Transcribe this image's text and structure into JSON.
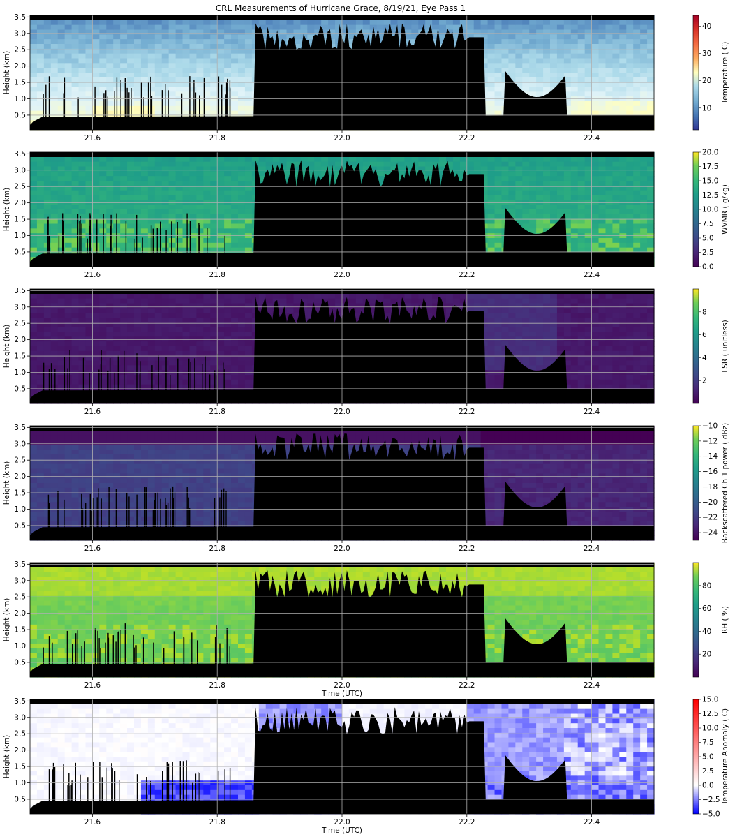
{
  "title": "CRL Measurements of Hurricane Grace, 8/19/21, Eye Pass 1",
  "colors": {
    "obstruction": "#000000",
    "grid": "#b0b0b0"
  },
  "chart_data": [
    {
      "type": "heatmap",
      "name": "temperature",
      "xlabel": "",
      "ylabel": "Height (km)",
      "xlim": [
        21.5,
        22.5
      ],
      "ylim": [
        0.05,
        3.55
      ],
      "xticks": [
        "21.6",
        "21.8",
        "22.0",
        "22.2",
        "22.4"
      ],
      "yticks": [
        "0.5",
        "1.0",
        "1.5",
        "2.0",
        "2.5",
        "3.0",
        "3.5"
      ],
      "colorbar": {
        "label": "Temperature ( C)",
        "cmap": "RdYlBu_r",
        "range": [
          2,
          44
        ],
        "ticks": [
          "10",
          "20",
          "30",
          "40"
        ]
      },
      "grid": true
    },
    {
      "type": "heatmap",
      "name": "wwmr",
      "xlabel": "",
      "ylabel": "Height (km)",
      "xlim": [
        21.5,
        22.5
      ],
      "ylim": [
        0.05,
        3.55
      ],
      "xticks": [
        "21.6",
        "21.8",
        "22.0",
        "22.2",
        "22.4"
      ],
      "yticks": [
        "0.5",
        "1.0",
        "1.5",
        "2.0",
        "2.5",
        "3.0",
        "3.5"
      ],
      "colorbar": {
        "label": "WVMR ( g/kg)",
        "cmap": "viridis",
        "range": [
          0,
          20
        ],
        "ticks": [
          "0.0",
          "2.5",
          "5.0",
          "7.5",
          "10.0",
          "12.5",
          "15.0",
          "17.5",
          "20.0"
        ]
      },
      "grid": true
    },
    {
      "type": "heatmap",
      "name": "lsr",
      "xlabel": "",
      "ylabel": "Height (km)",
      "xlim": [
        21.5,
        22.5
      ],
      "ylim": [
        0.05,
        3.55
      ],
      "xticks": [
        "21.6",
        "21.8",
        "22.0",
        "22.2",
        "22.4"
      ],
      "yticks": [
        "0.5",
        "1.0",
        "1.5",
        "2.0",
        "2.5",
        "3.0",
        "3.5"
      ],
      "colorbar": {
        "label": "LSR ( unitless)",
        "cmap": "viridis",
        "range": [
          0,
          10
        ],
        "ticks": [
          "2",
          "4",
          "6",
          "8"
        ]
      },
      "grid": true
    },
    {
      "type": "heatmap",
      "name": "backscatter",
      "xlabel": "",
      "ylabel": "Height (km)",
      "xlim": [
        21.5,
        22.5
      ],
      "ylim": [
        0.05,
        3.55
      ],
      "xticks": [
        "21.6",
        "21.8",
        "22.0",
        "22.2",
        "22.4"
      ],
      "yticks": [
        "0.5",
        "1.0",
        "1.5",
        "2.0",
        "2.5",
        "3.0",
        "3.5"
      ],
      "colorbar": {
        "label": "Backscattered Ch 1 power ( dBz)",
        "cmap": "viridis",
        "range": [
          -25,
          -10
        ],
        "ticks": [
          "−24",
          "−22",
          "−20",
          "−18",
          "−16",
          "−14",
          "−12",
          "−10"
        ]
      },
      "grid": true
    },
    {
      "type": "heatmap",
      "name": "rh",
      "xlabel": "Time (UTC)",
      "ylabel": "Height (km)",
      "xlim": [
        21.5,
        22.5
      ],
      "ylim": [
        0.05,
        3.55
      ],
      "xticks": [
        "21.6",
        "21.8",
        "22.0",
        "22.2",
        "22.4"
      ],
      "yticks": [
        "0.5",
        "1.0",
        "1.5",
        "2.0",
        "2.5",
        "3.0",
        "3.5"
      ],
      "colorbar": {
        "label": "RH ( %)",
        "cmap": "viridis",
        "range": [
          0,
          100
        ],
        "ticks": [
          "20",
          "40",
          "60",
          "80"
        ]
      },
      "grid": true
    },
    {
      "type": "heatmap",
      "name": "temperature-anomaly",
      "xlabel": "Time (UTC)",
      "ylabel": "Height (km)",
      "xlim": [
        21.5,
        22.5
      ],
      "ylim": [
        0.05,
        3.55
      ],
      "xticks": [
        "21.6",
        "21.8",
        "22.0",
        "22.2",
        "22.4"
      ],
      "yticks": [
        "0.5",
        "1.0",
        "1.5",
        "2.0",
        "2.5",
        "3.0",
        "3.5"
      ],
      "colorbar": {
        "label": "Temperature Anomaly ( C)",
        "cmap": "bwr",
        "range": [
          -5,
          15
        ],
        "ticks": [
          "−5.0",
          "−2.5",
          "0.0",
          "2.5",
          "5.0",
          "7.5",
          "10.0",
          "12.5",
          "15.0"
        ]
      },
      "grid": true
    }
  ]
}
